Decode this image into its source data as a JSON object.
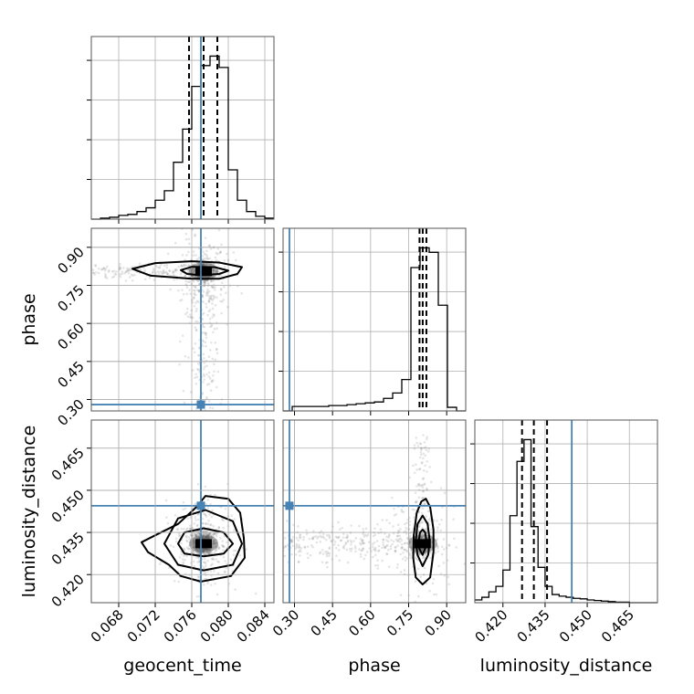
{
  "chart_data": {
    "type": "corner",
    "parameters": [
      "geocent_time",
      "phase",
      "luminosity_distance"
    ],
    "truths": {
      "geocent_time": 0.077,
      "phase": 0.28,
      "luminosity_distance": 0.4445
    },
    "quantiles": {
      "geocent_time": [
        0.0757,
        0.0773,
        0.0788
      ],
      "phase": [
        0.7929,
        0.8055,
        0.82
      ],
      "luminosity_distance": [
        0.4268,
        0.431,
        0.4357
      ]
    },
    "axes": {
      "geocent_time": {
        "lim": [
          0.065,
          0.085
        ],
        "ticks": [
          0.068,
          0.072,
          0.076,
          0.08,
          0.084
        ],
        "tick_labels": [
          "0.068",
          "0.072",
          "0.076",
          "0.080",
          "0.084"
        ]
      },
      "phase": {
        "lim": [
          0.255,
          0.975
        ],
        "ticks": [
          0.3,
          0.45,
          0.6,
          0.75,
          0.9
        ],
        "tick_labels": [
          "0.30",
          "0.45",
          "0.60",
          "0.75",
          "0.90"
        ]
      },
      "luminosity_distance": {
        "lim": [
          0.41,
          0.475
        ],
        "ticks": [
          0.42,
          0.435,
          0.45,
          0.465
        ],
        "tick_labels": [
          "0.420",
          "0.435",
          "0.450",
          "0.465"
        ]
      }
    },
    "histograms": {
      "geocent_time": {
        "edges": [
          0.065,
          0.066,
          0.067,
          0.068,
          0.069,
          0.07,
          0.071,
          0.072,
          0.073,
          0.074,
          0.075,
          0.076,
          0.077,
          0.078,
          0.079,
          0.08,
          0.081,
          0.082,
          0.083,
          0.084,
          0.085
        ],
        "counts": [
          0,
          1,
          2,
          4,
          5,
          8,
          12,
          20,
          30,
          60,
          95,
          140,
          162,
          172,
          160,
          52,
          20,
          8,
          3,
          1
        ]
      },
      "phase": {
        "edges": [
          0.255,
          0.291,
          0.327,
          0.363,
          0.399,
          0.435,
          0.471,
          0.507,
          0.543,
          0.579,
          0.615,
          0.651,
          0.687,
          0.723,
          0.759,
          0.795,
          0.831,
          0.867,
          0.903,
          0.939,
          0.975
        ],
        "counts": [
          0,
          5,
          5,
          5,
          5,
          6,
          6,
          7,
          8,
          9,
          10,
          14,
          20,
          35,
          160,
          182,
          177,
          118,
          4,
          0
        ]
      },
      "luminosity_distance": {
        "edges": [
          0.41,
          0.4125,
          0.415,
          0.4175,
          0.42,
          0.4225,
          0.425,
          0.4275,
          0.43,
          0.4325,
          0.435,
          0.4375,
          0.44,
          0.4425,
          0.445,
          0.4475,
          0.45,
          0.4525,
          0.455,
          0.4575,
          0.46,
          0.4625,
          0.465,
          0.4675,
          0.47,
          0.4725,
          0.475
        ],
        "counts": [
          5,
          10,
          20,
          30,
          60,
          160,
          260,
          300,
          140,
          65,
          30,
          15,
          12,
          10,
          8,
          7,
          5,
          4,
          3,
          2,
          1,
          1,
          0,
          0,
          0,
          0
        ]
      }
    },
    "joint_2d": {
      "geocent_time__phase": {
        "density_peak": [
          0.0773,
          0.805
        ],
        "contours": [
          {
            "level": 1,
            "points": [
              [
                0.077,
                0.79
              ],
              [
                0.079,
                0.795
              ],
              [
                0.08,
                0.808
              ],
              [
                0.0785,
                0.822
              ],
              [
                0.076,
                0.823
              ],
              [
                0.0748,
                0.81
              ],
              [
                0.0755,
                0.795
              ]
            ]
          },
          {
            "level": 2,
            "points": [
              [
                0.076,
                0.776
              ],
              [
                0.079,
                0.776
              ],
              [
                0.081,
                0.795
              ],
              [
                0.0815,
                0.822
              ],
              [
                0.079,
                0.84
              ],
              [
                0.076,
                0.845
              ],
              [
                0.072,
                0.838
              ],
              [
                0.0695,
                0.815
              ],
              [
                0.0715,
                0.788
              ]
            ]
          }
        ]
      },
      "geocent_time__luminosity_distance": {
        "density_peak": [
          0.0773,
          0.431
        ],
        "contours": [
          {
            "level": 1,
            "points": [
              [
                0.0773,
                0.4265
              ],
              [
                0.0795,
                0.4275
              ],
              [
                0.0805,
                0.431
              ],
              [
                0.0795,
                0.435
              ],
              [
                0.0773,
                0.4365
              ],
              [
                0.0752,
                0.435
              ],
              [
                0.0745,
                0.431
              ],
              [
                0.0752,
                0.4275
              ]
            ]
          },
          {
            "level": 2,
            "points": [
              [
                0.0773,
                0.4215
              ],
              [
                0.0805,
                0.4235
              ],
              [
                0.0815,
                0.431
              ],
              [
                0.0805,
                0.439
              ],
              [
                0.0775,
                0.443
              ],
              [
                0.0745,
                0.44
              ],
              [
                0.073,
                0.431
              ],
              [
                0.0745,
                0.4235
              ]
            ]
          },
          {
            "level": 3,
            "points": [
              [
                0.077,
                0.4175
              ],
              [
                0.0803,
                0.4195
              ],
              [
                0.0818,
                0.426
              ],
              [
                0.0817,
                0.433
              ],
              [
                0.0813,
                0.442
              ],
              [
                0.08,
                0.447
              ],
              [
                0.0775,
                0.448
              ],
              [
                0.0765,
                0.444
              ],
              [
                0.0745,
                0.438
              ],
              [
                0.072,
                0.434
              ],
              [
                0.0705,
                0.4315
              ],
              [
                0.0712,
                0.428
              ],
              [
                0.0735,
                0.4235
              ],
              [
                0.0748,
                0.4195
              ]
            ]
          }
        ]
      },
      "phase__luminosity_distance": {
        "density_peak": [
          0.805,
          0.431
        ],
        "contours": [
          {
            "level": 1,
            "points": [
              [
                0.805,
                0.427
              ],
              [
                0.818,
                0.43
              ],
              [
                0.82,
                0.432
              ],
              [
                0.815,
                0.435
              ],
              [
                0.805,
                0.436
              ],
              [
                0.795,
                0.435
              ],
              [
                0.79,
                0.432
              ],
              [
                0.793,
                0.429
              ]
            ]
          },
          {
            "level": 2,
            "points": [
              [
                0.805,
                0.423
              ],
              [
                0.827,
                0.427
              ],
              [
                0.833,
                0.432
              ],
              [
                0.825,
                0.438
              ],
              [
                0.805,
                0.441
              ],
              [
                0.785,
                0.438
              ],
              [
                0.778,
                0.432
              ],
              [
                0.785,
                0.427
              ]
            ]
          },
          {
            "level": 3,
            "points": [
              [
                0.805,
                0.4165
              ],
              [
                0.835,
                0.419
              ],
              [
                0.848,
                0.428
              ],
              [
                0.848,
                0.436
              ],
              [
                0.835,
                0.444
              ],
              [
                0.818,
                0.447
              ],
              [
                0.8,
                0.446
              ],
              [
                0.782,
                0.442
              ],
              [
                0.77,
                0.434
              ],
              [
                0.768,
                0.426
              ],
              [
                0.778,
                0.419
              ]
            ]
          }
        ]
      }
    }
  }
}
